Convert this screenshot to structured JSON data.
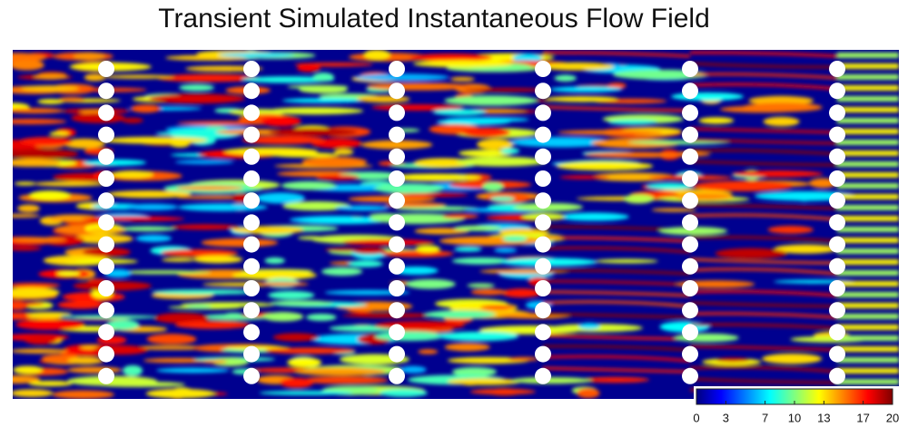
{
  "title": "Transient Simulated Instantaneous Flow Field",
  "colorbar": {
    "range": [
      0,
      20
    ],
    "ticks": [
      0,
      3,
      7,
      10,
      13,
      17,
      20
    ]
  }
}
